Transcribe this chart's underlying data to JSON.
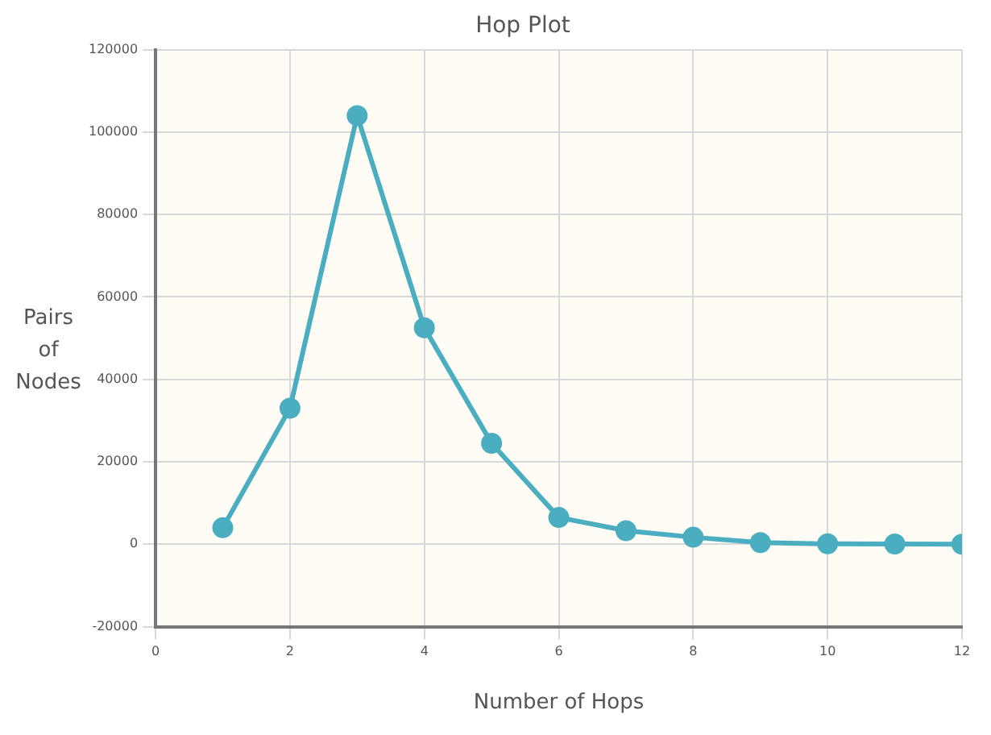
{
  "chart_data": {
    "type": "line",
    "title": "Hop Plot",
    "xlabel": "Number of Hops",
    "ylabel": "Pairs of Nodes",
    "x": [
      1,
      2,
      3,
      4,
      5,
      6,
      7,
      8,
      9,
      10,
      11,
      12
    ],
    "series": [
      {
        "color": "#4aaec0",
        "values": [
          4000,
          33000,
          104000,
          52500,
          24500,
          6500,
          3300,
          1700,
          400,
          100,
          50,
          0
        ]
      }
    ],
    "xlim": [
      0,
      12
    ],
    "xticks": [
      0,
      2,
      4,
      6,
      8,
      10,
      12
    ],
    "ylim": [
      -20000,
      120000
    ],
    "yticks": [
      -20000,
      0,
      20000,
      40000,
      60000,
      80000,
      100000,
      120000
    ],
    "grid": true,
    "legend": false,
    "marker": "circle",
    "line_style": "solid"
  }
}
